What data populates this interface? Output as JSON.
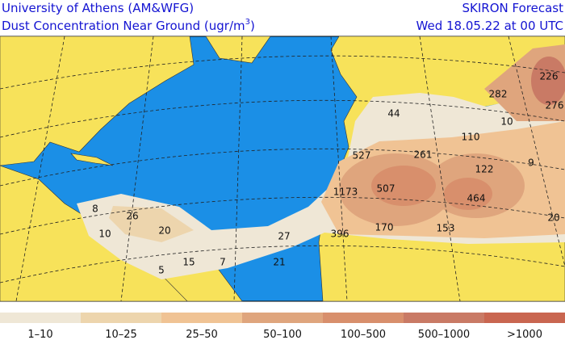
{
  "header": {
    "left": [
      "University of Athens (AM&WFG)",
      [
        "Dust Concentration Near Ground (ugr/m",
        "3",
        ")"
      ]
    ],
    "right": [
      "SKIRON Forecast",
      "Wed 18.05.22 at 00 UTC"
    ]
  },
  "map": {
    "labels": [
      226,
      282,
      276,
      44,
      10,
      110,
      527,
      261,
      9,
      122,
      1173,
      507,
      464,
      396,
      170,
      153,
      20,
      8,
      26,
      20,
      10,
      27,
      5,
      15,
      7,
      21
    ]
  },
  "legend": {
    "labels": [
      "1–10",
      "10–25",
      "25–50",
      "50–100",
      "100–500",
      "500–1000",
      ">1000"
    ],
    "colors": [
      "#efe7d6",
      "#edd5ad",
      "#f0c394",
      "#dfa57d",
      "#d88f6c",
      "#c97a65",
      "#c96650"
    ]
  }
}
